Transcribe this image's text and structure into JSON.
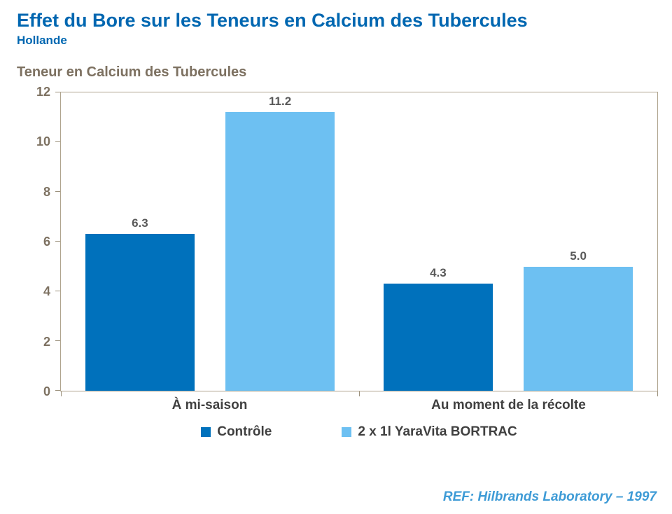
{
  "header": {
    "title": "Effet du Bore sur les Teneurs en Calcium des Tubercules",
    "subtitle": "Hollande"
  },
  "chart": {
    "title": "Teneur en Calcium des Tubercules"
  },
  "footer": {
    "ref": "REF: Hilbrands Laboratory – 1997"
  },
  "colors": {
    "title_blue": "#0067B1",
    "axis_text": "#7D7161",
    "value_label": "#595959",
    "category_text": "#404040",
    "ref_blue": "#3E9BD6",
    "control_bar": "#0071BC",
    "bortrac_bar": "#6DC0F2"
  },
  "chart_data": {
    "type": "bar",
    "title": "Teneur en Calcium des Tubercules",
    "categories": [
      "À mi-saison",
      "Au moment de la récolte"
    ],
    "series": [
      {
        "name": "Contrôle",
        "values": [
          6.3,
          4.3
        ],
        "color": "#0071BC"
      },
      {
        "name": "2 x 1l YaraVita BORTRAC",
        "values": [
          11.2,
          5.0
        ],
        "color": "#6DC0F2"
      }
    ],
    "xlabel": "",
    "ylabel": "",
    "ylim": [
      0,
      12
    ],
    "yticks": [
      0,
      2,
      4,
      6,
      8,
      10,
      12
    ],
    "grid": false,
    "legend_position": "bottom",
    "value_labels": true
  }
}
